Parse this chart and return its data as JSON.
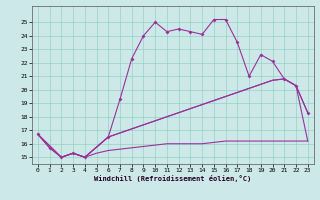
{
  "xlabel": "Windchill (Refroidissement éolien,°C)",
  "bg_color": "#cce8e8",
  "line_color": "#993399",
  "xlim": [
    -0.5,
    23.5
  ],
  "ylim": [
    14.5,
    26.2
  ],
  "xticks": [
    0,
    1,
    2,
    3,
    4,
    5,
    6,
    7,
    8,
    9,
    10,
    11,
    12,
    13,
    14,
    15,
    16,
    17,
    18,
    19,
    20,
    21,
    22,
    23
  ],
  "yticks": [
    15,
    16,
    17,
    18,
    19,
    20,
    21,
    22,
    23,
    24,
    25
  ],
  "curve1_x": [
    0,
    1,
    2,
    3,
    4,
    6,
    7,
    8,
    9,
    10,
    11,
    12,
    13,
    14,
    15,
    16,
    17,
    18,
    19,
    20,
    21,
    22,
    23
  ],
  "curve1_y": [
    16.7,
    15.7,
    15.0,
    15.3,
    15.0,
    16.5,
    19.3,
    22.3,
    24.0,
    25.0,
    24.3,
    24.5,
    24.3,
    24.1,
    25.2,
    25.2,
    23.5,
    21.0,
    22.6,
    22.1,
    20.8,
    20.3,
    18.3
  ],
  "curve2_x": [
    0,
    2,
    3,
    4,
    6,
    20,
    21,
    22,
    23
  ],
  "curve2_y": [
    16.7,
    15.0,
    15.3,
    15.0,
    16.5,
    20.7,
    20.8,
    20.3,
    18.3
  ],
  "curve3_x": [
    0,
    2,
    3,
    4,
    6,
    20,
    21,
    22,
    23
  ],
  "curve3_y": [
    16.7,
    15.0,
    15.3,
    15.0,
    16.5,
    20.7,
    20.8,
    20.3,
    16.2
  ],
  "curve4_x": [
    0,
    1,
    2,
    3,
    4,
    5,
    6,
    7,
    8,
    9,
    10,
    11,
    12,
    13,
    14,
    15,
    16,
    17,
    18,
    19,
    20,
    21,
    22,
    23
  ],
  "curve4_y": [
    16.7,
    15.7,
    15.0,
    15.3,
    15.0,
    15.3,
    15.5,
    15.6,
    15.7,
    15.8,
    15.9,
    16.0,
    16.0,
    16.0,
    16.0,
    16.1,
    16.2,
    16.2,
    16.2,
    16.2,
    16.2,
    16.2,
    16.2,
    16.2
  ]
}
